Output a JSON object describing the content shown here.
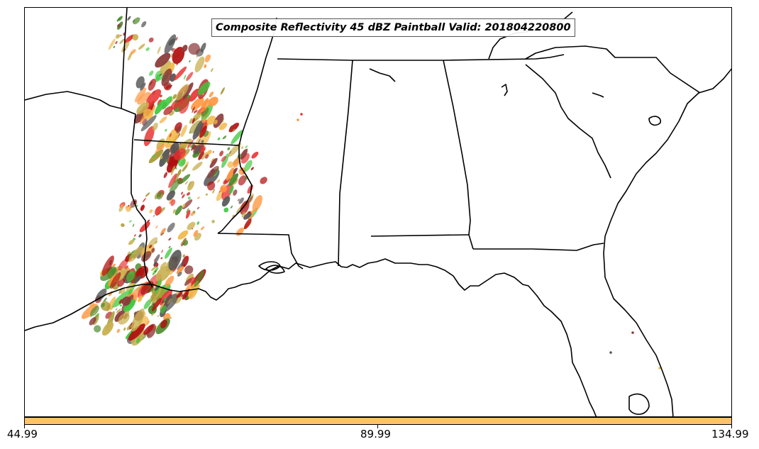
{
  "title": "Composite Reflectivity 45 dBZ Paintball Valid: 201804220800",
  "colorbar": {
    "color": "#FFC266",
    "ticks": [
      "44.99",
      "89.99",
      "134.99"
    ]
  },
  "colors": {
    "paintball": [
      "#e83232",
      "#b01010",
      "#ff9640",
      "#f2b84a",
      "#3cc83c",
      "#4a8a2a",
      "#a89a34",
      "#8b3a3a",
      "#c8b050",
      "#555555"
    ],
    "outline": "#000000",
    "background": "#ffffff"
  }
}
